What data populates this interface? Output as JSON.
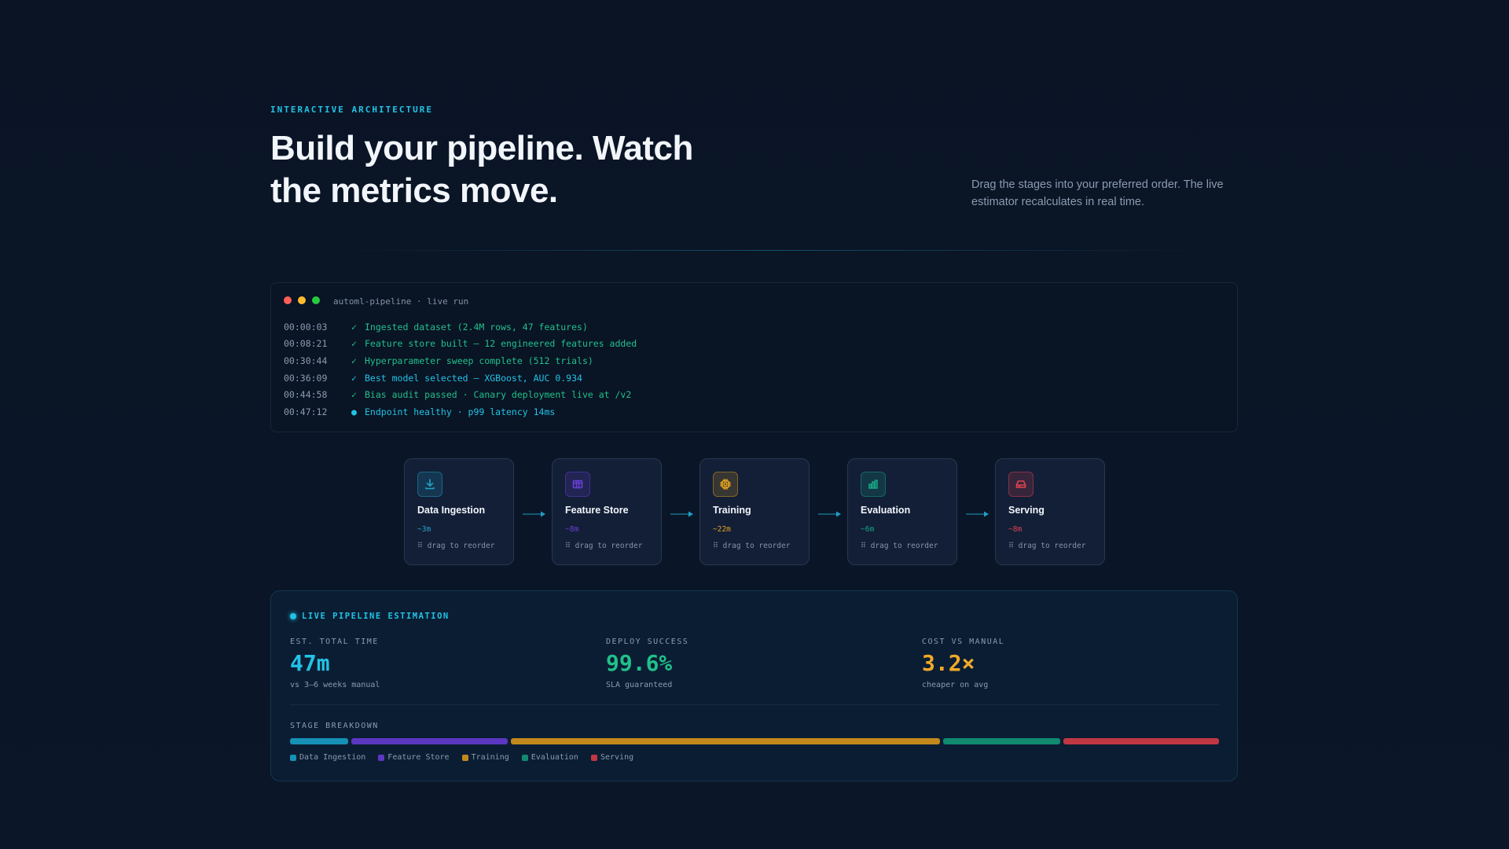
{
  "hero": {
    "eyebrow": "INTERACTIVE ARCHITECTURE",
    "headline": "Build your pipeline. Watch the metrics move.",
    "subcopy": "Drag the stages into your preferred order. The live estimator recalculates in real time."
  },
  "terminal": {
    "title": "automl-pipeline · live run",
    "dot_colors": [
      "#ff5f57",
      "#febc2e",
      "#28c840"
    ],
    "lines": [
      {
        "time": "00:00:03",
        "mark": "✓",
        "message": "Ingested dataset (2.4M rows, 47 features)",
        "tone": "green"
      },
      {
        "time": "00:08:21",
        "mark": "✓",
        "message": "Feature store built — 12 engineered features added",
        "tone": "green"
      },
      {
        "time": "00:30:44",
        "mark": "✓",
        "message": "Hyperparameter sweep complete (512 trials)",
        "tone": "green"
      },
      {
        "time": "00:36:09",
        "mark": "✓",
        "message": "Best model selected — XGBoost, AUC 0.934",
        "tone": "cyan"
      },
      {
        "time": "00:44:58",
        "mark": "✓",
        "message": "Bias audit passed · Canary deployment live at /v2",
        "tone": "green"
      },
      {
        "time": "00:47:12",
        "mark": "●",
        "message": "Endpoint healthy · p99 latency 14ms",
        "tone": "cyan"
      }
    ]
  },
  "stages": [
    {
      "name": "Data Ingestion",
      "time": "~3m",
      "drag": "⠿ drag to reorder",
      "icon": "download-icon",
      "color": "#1fa3c9"
    },
    {
      "name": "Feature Store",
      "time": "~8m",
      "drag": "⠿ drag to reorder",
      "icon": "table-icon",
      "color": "#6a3fd6"
    },
    {
      "name": "Training",
      "time": "~22m",
      "drag": "⠿ drag to reorder",
      "icon": "chip-icon",
      "color": "#e2a21d"
    },
    {
      "name": "Evaluation",
      "time": "~6m",
      "drag": "⠿ drag to reorder",
      "icon": "bar-chart-icon",
      "color": "#16a785"
    },
    {
      "name": "Serving",
      "time": "~8m",
      "drag": "⠿ drag to reorder",
      "icon": "server-icon",
      "color": "#e0434f"
    }
  ],
  "estimation": {
    "title": "LIVE PIPELINE ESTIMATION",
    "metrics": [
      {
        "label": "EST. TOTAL TIME",
        "value": "47m",
        "sub": "vs 3–6 weeks manual",
        "color": "#22c3e6"
      },
      {
        "label": "DEPLOY SUCCESS",
        "value": "99.6%",
        "sub": "SLA guaranteed",
        "color": "#21c08b"
      },
      {
        "label": "COST VS MANUAL",
        "value": "3.2×",
        "sub": "cheaper on avg",
        "color": "#f0a929"
      }
    ],
    "breakdown_label": "STAGE BREAKDOWN",
    "breakdown": [
      {
        "name": "Data Ingestion",
        "minutes": 3,
        "color": "#1691b5"
      },
      {
        "name": "Feature Store",
        "minutes": 8,
        "color": "#5b37c2"
      },
      {
        "name": "Training",
        "minutes": 22,
        "color": "#c1891c"
      },
      {
        "name": "Evaluation",
        "minutes": 6,
        "color": "#128a6f"
      },
      {
        "name": "Serving",
        "minutes": 8,
        "color": "#c03743"
      }
    ]
  }
}
